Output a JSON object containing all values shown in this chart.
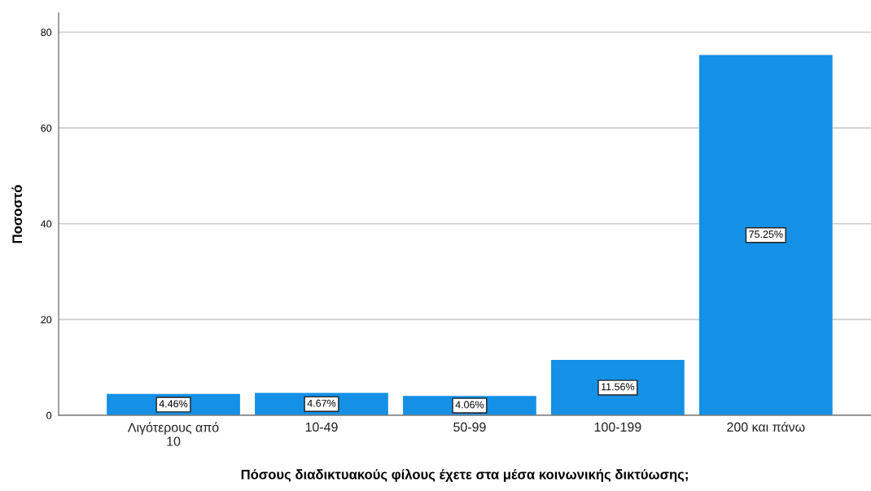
{
  "chart_data": {
    "type": "bar",
    "xlabel": "Πόσους διαδικτυακούς φίλους έχετε στα μέσα κοινωνικής δικτύωσης;",
    "ylabel": "Ποσοστό",
    "categories": [
      "Λιγότερους από\n10",
      "10-49",
      "50-99",
      "100-199",
      "200 και πάνω"
    ],
    "values": [
      4.46,
      4.67,
      4.06,
      11.56,
      75.25
    ],
    "value_labels": [
      "4.46%",
      "4.67%",
      "4.06%",
      "11.56%",
      "75.25%"
    ],
    "color": "#1490e6",
    "ylim": [
      0,
      84
    ],
    "yticks": [
      0,
      20,
      40,
      60,
      80
    ],
    "grid": "y",
    "legend": false
  }
}
